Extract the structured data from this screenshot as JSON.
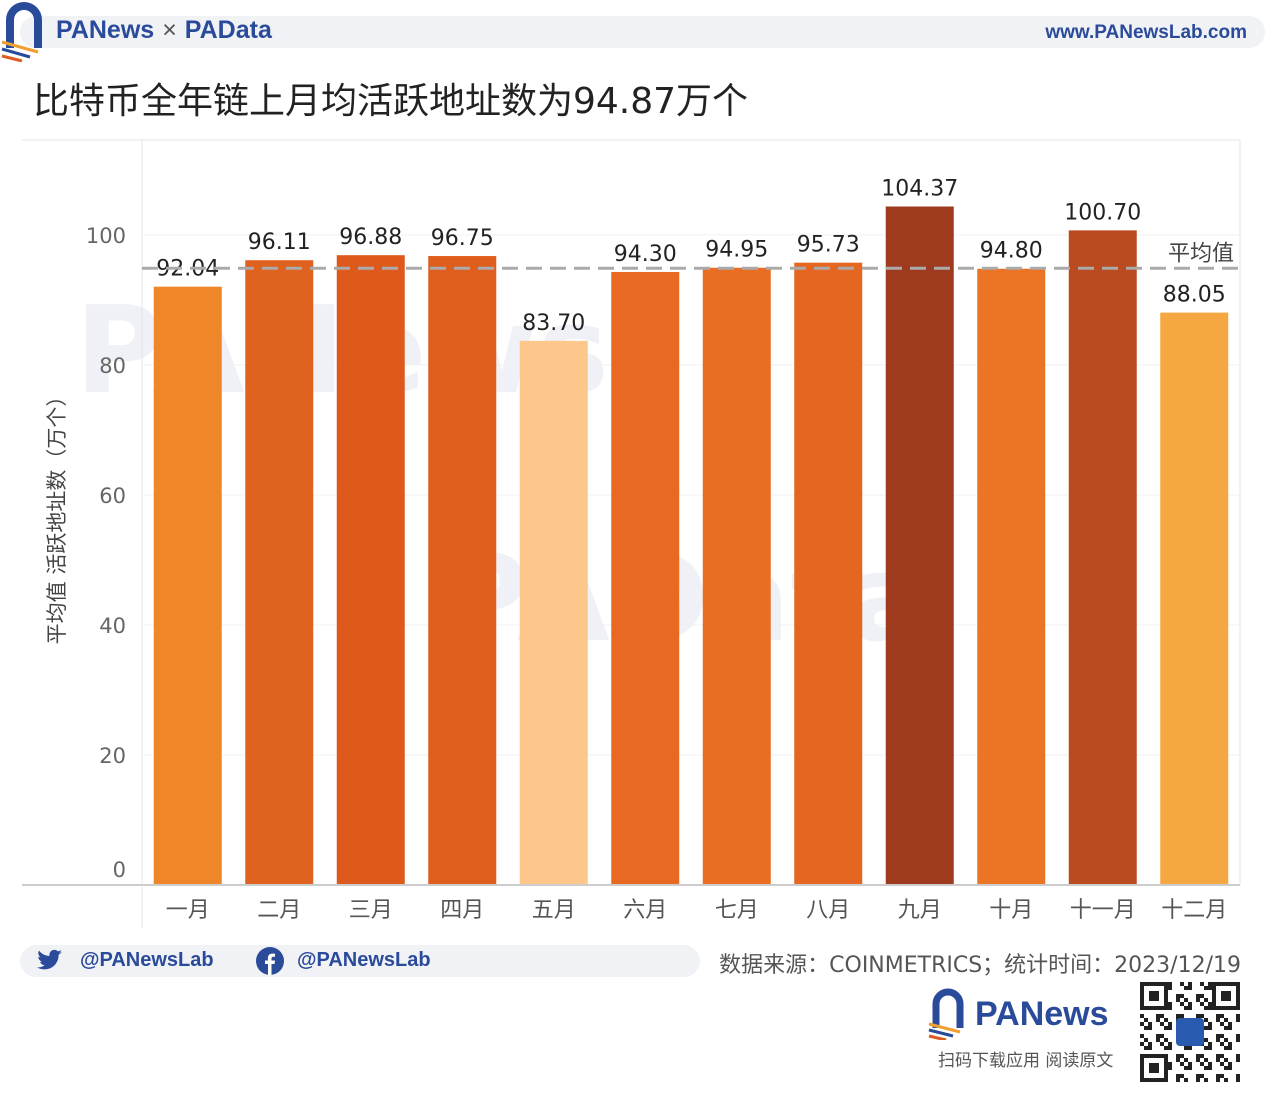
{
  "header": {
    "brand_left": "PANews",
    "brand_sep": "×",
    "brand_right": "PAData",
    "url": "www.PANewsLab.com"
  },
  "title": "比特币全年链上月均活跃地址数为94.87万个",
  "footer": {
    "twitter": "@PANewsLab",
    "facebook": "@PANewsLab",
    "source": "数据来源：COINMETRICS；统计时间：2023/12/19",
    "logo": "PANews",
    "scan_text": "扫码下载应用  阅读原文"
  },
  "watermarks": [
    "PANews",
    "PAData"
  ],
  "chart_data": {
    "type": "bar",
    "title": "",
    "xlabel": "",
    "ylabel": "平均值 活跃地址数（万个）",
    "ylim": [
      0,
      114.6
    ],
    "yticks": [
      0,
      20,
      40,
      60,
      80,
      100
    ],
    "grid": true,
    "categories": [
      "一月",
      "二月",
      "三月",
      "四月",
      "五月",
      "六月",
      "七月",
      "八月",
      "九月",
      "十月",
      "十一月",
      "十二月"
    ],
    "values": [
      92.04,
      96.11,
      96.88,
      96.75,
      83.7,
      94.3,
      94.95,
      95.73,
      104.37,
      94.8,
      100.7,
      88.05
    ],
    "labels": [
      "92.04",
      "96.11",
      "96.88",
      "96.75",
      "83.70",
      "94.30",
      "94.95",
      "95.73",
      "104.37",
      "94.80",
      "100.70",
      "88.05"
    ],
    "colors": [
      "#f0862a",
      "#e0621f",
      "#dd5a1c",
      "#df5e1e",
      "#fdc68a",
      "#e86a22",
      "#e96d22",
      "#e46620",
      "#9e3a1e",
      "#ec7525",
      "#ba4a20",
      "#f5a742"
    ],
    "reference_line": {
      "value": 94.87,
      "label": "平均值",
      "color": "#aaaaaa"
    }
  }
}
